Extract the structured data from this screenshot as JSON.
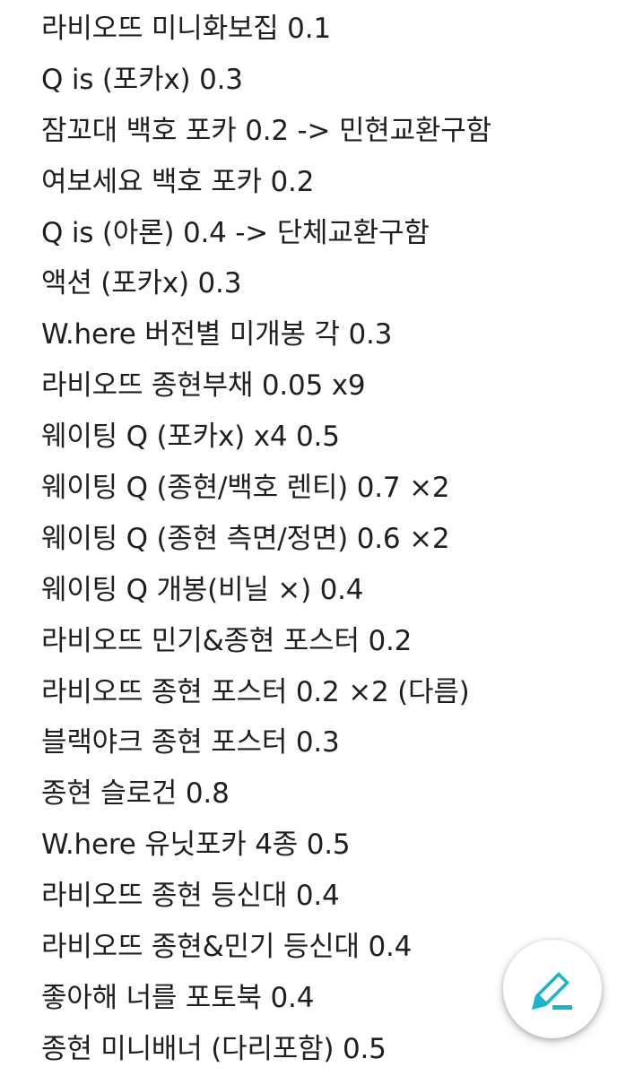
{
  "note": {
    "lines": [
      "라비오뜨 미니화보집 0.1",
      "Q is (포카x) 0.3",
      "잠꼬대 백호 포카 0.2  -> 민현교환구함",
      "여보세요 백호 포카 0.2",
      "Q is (아론) 0.4 -> 단체교환구함",
      "액션 (포카x) 0.3",
      "W.here 버전별 미개봉 각 0.3",
      "라비오뜨 종현부채 0.05 x9",
      "웨이팅 Q (포카x) x4 0.5",
      "웨이팅 Q (종현/백호 렌티) 0.7 ×2",
      "웨이팅 Q (종현 측면/정면) 0.6 ×2",
      "웨이팅 Q 개봉(비닐 ×) 0.4",
      "라비오뜨 민기&종현 포스터 0.2",
      "라비오뜨 종현 포스터 0.2 ×2 (다름)",
      "블랙야크 종현 포스터 0.3",
      "종현 슬로건 0.8",
      "W.here 유닛포카 4종 0.5",
      "라비오뜨 종현 등신대 0.4",
      "라비오뜨 종현&민기 등신대 0.4",
      "좋아해 너를 포토북 0.4",
      "종현 미니배너 (다리포함) 0.5"
    ]
  },
  "fab": {
    "icon": "pencil-edit-icon",
    "color": "#1ab3c8"
  }
}
